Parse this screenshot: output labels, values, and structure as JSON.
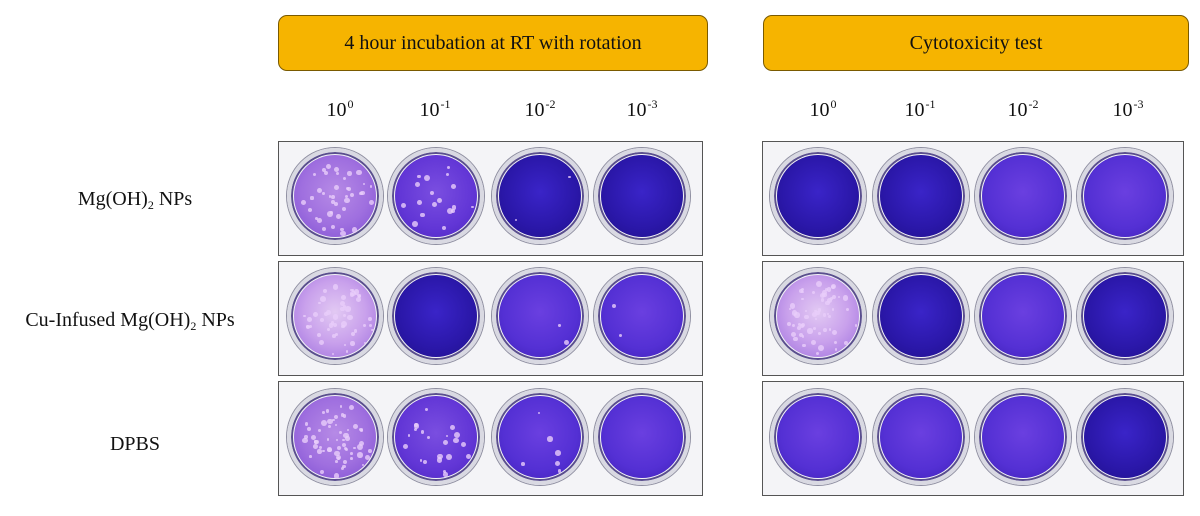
{
  "headers": {
    "left": "4 hour incubation at RT with rotation",
    "right": "Cytotoxicity test"
  },
  "dilutions": [
    {
      "base": "10",
      "exp": "0"
    },
    {
      "base": "10",
      "exp": "-1"
    },
    {
      "base": "10",
      "exp": "-2"
    },
    {
      "base": "10",
      "exp": "-3"
    }
  ],
  "rows": [
    {
      "label_pre": "Mg(OH)",
      "label_sub": "2",
      "label_post": " NPs"
    },
    {
      "label_pre": "Cu-Infused Mg(OH)",
      "label_sub": "2",
      "label_post": " NPs"
    },
    {
      "label_pre": "DPBS",
      "label_sub": "",
      "label_post": ""
    }
  ],
  "dishes": {
    "left": [
      [
        "light",
        "medium",
        "dark",
        "dark"
      ],
      [
        "pale",
        "dark",
        "violet",
        "violet"
      ],
      [
        "light",
        "medium",
        "violet",
        "violet"
      ]
    ],
    "right": [
      [
        "dark",
        "dark",
        "violet",
        "violet"
      ],
      [
        "pale",
        "dark",
        "violet",
        "dark"
      ],
      [
        "violet",
        "violet",
        "violet",
        "dark"
      ]
    ]
  },
  "plaques": {
    "left": [
      [
        40,
        18,
        2,
        0
      ],
      [
        50,
        0,
        2,
        2
      ],
      [
        60,
        22,
        6,
        0
      ]
    ],
    "right": [
      [
        0,
        0,
        0,
        0
      ],
      [
        60,
        0,
        0,
        0
      ],
      [
        0,
        0,
        0,
        0
      ]
    ]
  }
}
